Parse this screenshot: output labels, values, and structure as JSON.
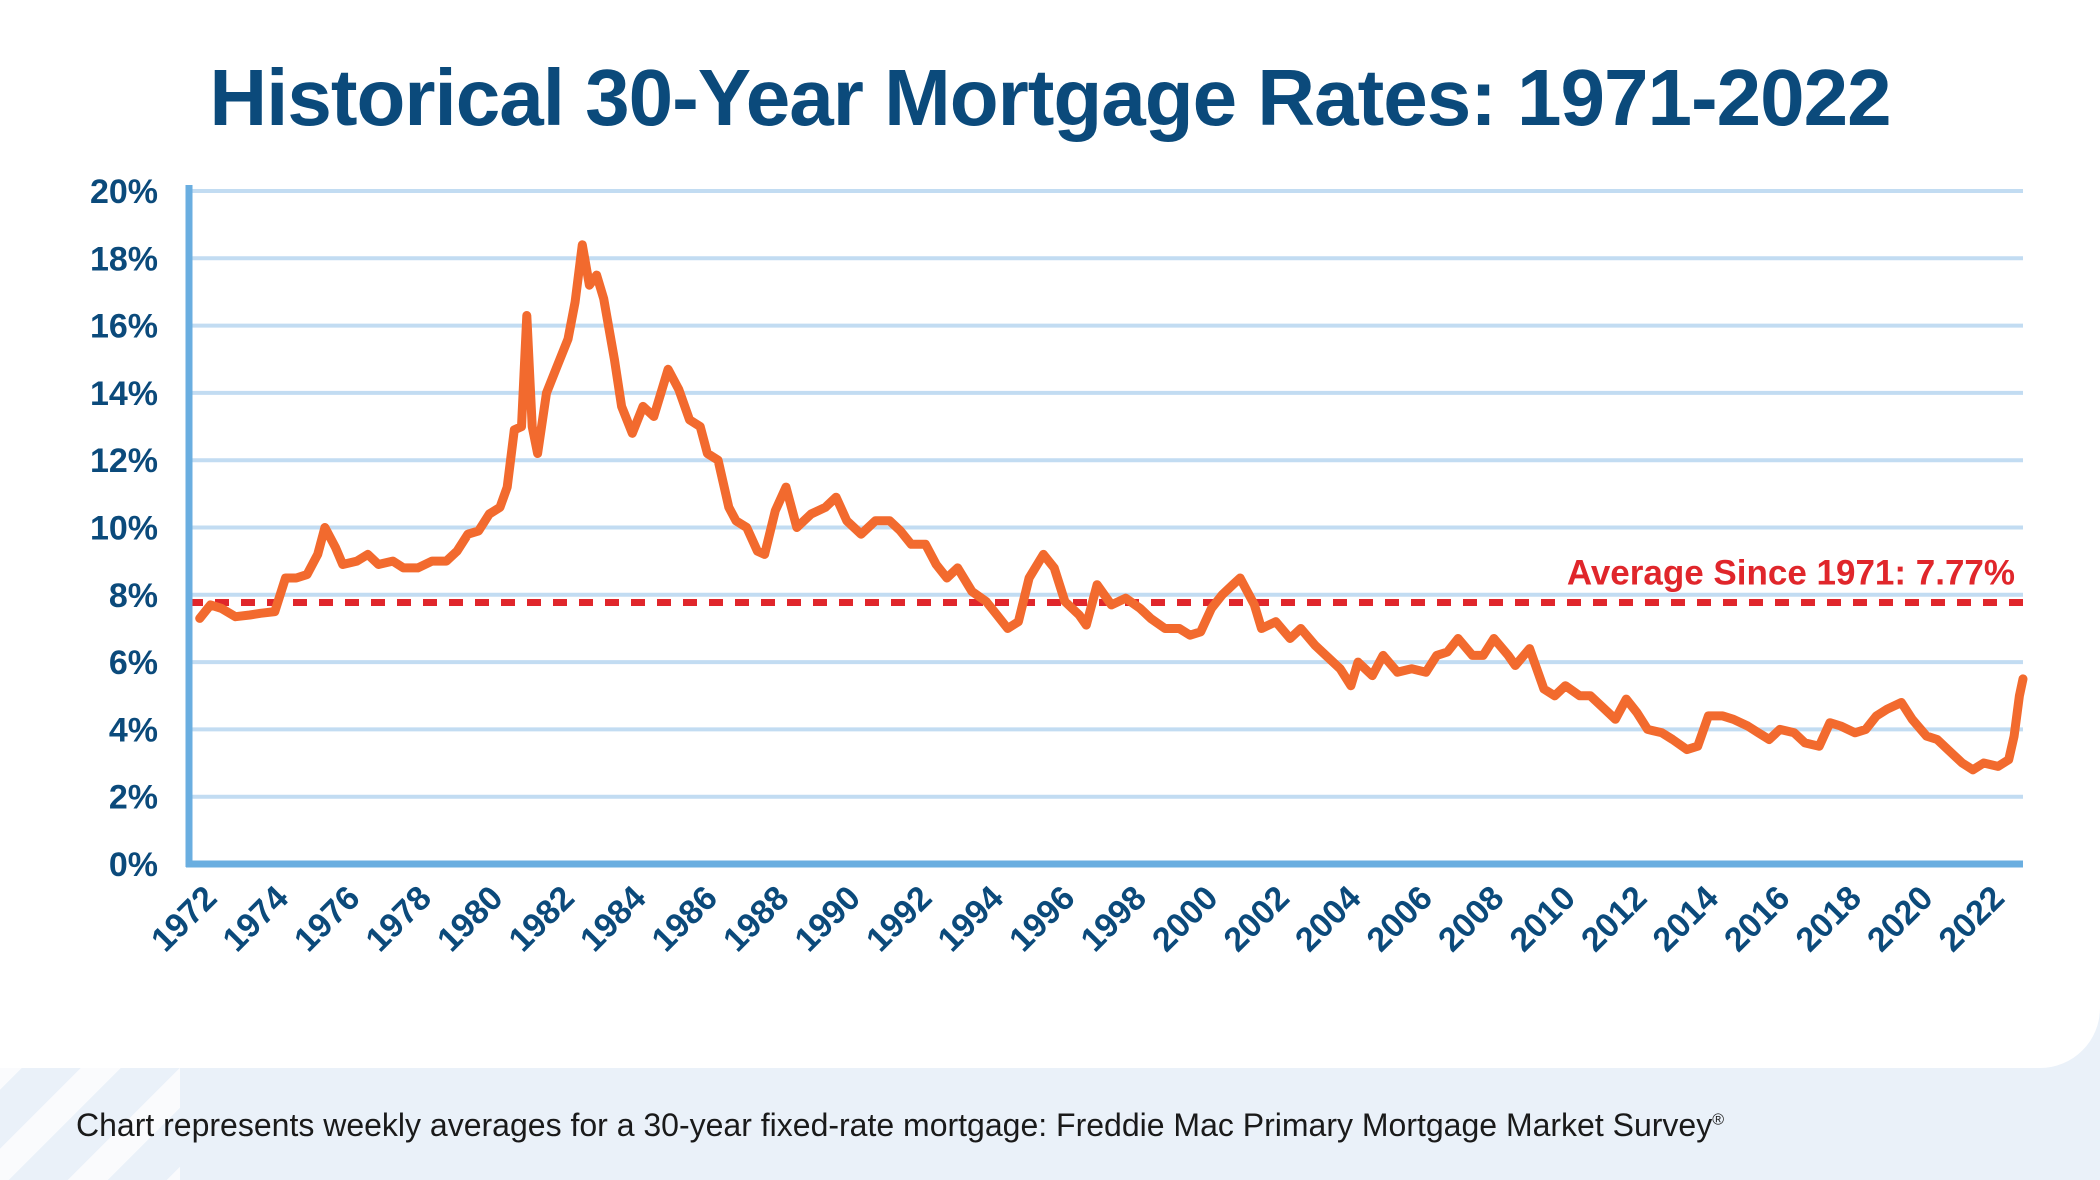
{
  "chart_data": {
    "type": "line",
    "title": "Historical 30-Year Mortgage Rates: 1971-2022",
    "xlabel": "",
    "ylabel": "",
    "ylim": [
      0,
      20
    ],
    "xlim": [
      1971,
      2022.3
    ],
    "grid": true,
    "y_ticks": [
      "0%",
      "2%",
      "4%",
      "6%",
      "8%",
      "10%",
      "12%",
      "14%",
      "16%",
      "18%",
      "20%"
    ],
    "x_ticks": [
      "1972",
      "1974",
      "1976",
      "1978",
      "1980",
      "1982",
      "1984",
      "1986",
      "1988",
      "1990",
      "1992",
      "1994",
      "1996",
      "1998",
      "2000",
      "2002",
      "2004",
      "2006",
      "2008",
      "2010",
      "2012",
      "2014",
      "2016",
      "2018",
      "2020",
      "2022"
    ],
    "colors": {
      "line": "#f26a2e",
      "average": "#e0262b",
      "grid": "#c2dcf2",
      "axis": "#6aaee0",
      "text": "#0b4a7b"
    },
    "average": {
      "value": 7.77,
      "label": "Average Since 1971: 7.77%"
    },
    "series": [
      {
        "points": [
          [
            1971.3,
            7.3
          ],
          [
            1971.6,
            7.7
          ],
          [
            1971.9,
            7.6
          ],
          [
            1972.3,
            7.35
          ],
          [
            1972.7,
            7.4
          ],
          [
            1973.0,
            7.45
          ],
          [
            1973.4,
            7.5
          ],
          [
            1973.7,
            8.5
          ],
          [
            1974.0,
            8.5
          ],
          [
            1974.3,
            8.6
          ],
          [
            1974.6,
            9.2
          ],
          [
            1974.8,
            10.0
          ],
          [
            1975.1,
            9.4
          ],
          [
            1975.3,
            8.9
          ],
          [
            1975.7,
            9.0
          ],
          [
            1976.0,
            9.2
          ],
          [
            1976.3,
            8.9
          ],
          [
            1976.7,
            9.0
          ],
          [
            1977.0,
            8.8
          ],
          [
            1977.4,
            8.8
          ],
          [
            1977.8,
            9.0
          ],
          [
            1978.2,
            9.0
          ],
          [
            1978.5,
            9.3
          ],
          [
            1978.8,
            9.8
          ],
          [
            1979.1,
            9.9
          ],
          [
            1979.4,
            10.4
          ],
          [
            1979.7,
            10.6
          ],
          [
            1979.9,
            11.2
          ],
          [
            1980.1,
            12.9
          ],
          [
            1980.3,
            13.0
          ],
          [
            1980.45,
            16.3
          ],
          [
            1980.6,
            13.0
          ],
          [
            1980.75,
            12.2
          ],
          [
            1981.0,
            14.0
          ],
          [
            1981.3,
            14.8
          ],
          [
            1981.6,
            15.6
          ],
          [
            1981.8,
            16.7
          ],
          [
            1982.0,
            18.4
          ],
          [
            1982.2,
            17.2
          ],
          [
            1982.4,
            17.5
          ],
          [
            1982.6,
            16.8
          ],
          [
            1982.9,
            15.0
          ],
          [
            1983.1,
            13.6
          ],
          [
            1983.4,
            12.8
          ],
          [
            1983.7,
            13.6
          ],
          [
            1984.0,
            13.3
          ],
          [
            1984.4,
            14.7
          ],
          [
            1984.7,
            14.1
          ],
          [
            1985.0,
            13.2
          ],
          [
            1985.3,
            13.0
          ],
          [
            1985.5,
            12.2
          ],
          [
            1985.8,
            12.0
          ],
          [
            1986.1,
            10.6
          ],
          [
            1986.3,
            10.2
          ],
          [
            1986.6,
            10.0
          ],
          [
            1986.9,
            9.3
          ],
          [
            1987.1,
            9.2
          ],
          [
            1987.4,
            10.5
          ],
          [
            1987.7,
            11.2
          ],
          [
            1988.0,
            10.0
          ],
          [
            1988.4,
            10.4
          ],
          [
            1988.8,
            10.6
          ],
          [
            1989.1,
            10.9
          ],
          [
            1989.4,
            10.2
          ],
          [
            1989.8,
            9.8
          ],
          [
            1990.2,
            10.2
          ],
          [
            1990.6,
            10.2
          ],
          [
            1990.9,
            9.9
          ],
          [
            1991.2,
            9.5
          ],
          [
            1991.6,
            9.5
          ],
          [
            1991.9,
            8.9
          ],
          [
            1992.2,
            8.5
          ],
          [
            1992.5,
            8.8
          ],
          [
            1992.9,
            8.1
          ],
          [
            1993.3,
            7.8
          ],
          [
            1993.6,
            7.4
          ],
          [
            1993.9,
            7.0
          ],
          [
            1994.2,
            7.2
          ],
          [
            1994.5,
            8.5
          ],
          [
            1994.9,
            9.2
          ],
          [
            1995.2,
            8.8
          ],
          [
            1995.5,
            7.8
          ],
          [
            1995.9,
            7.4
          ],
          [
            1996.1,
            7.1
          ],
          [
            1996.4,
            8.3
          ],
          [
            1996.8,
            7.7
          ],
          [
            1997.2,
            7.9
          ],
          [
            1997.6,
            7.6
          ],
          [
            1997.9,
            7.3
          ],
          [
            1998.3,
            7.0
          ],
          [
            1998.7,
            7.0
          ],
          [
            1999.0,
            6.8
          ],
          [
            1999.3,
            6.9
          ],
          [
            1999.6,
            7.6
          ],
          [
            1999.9,
            8.0
          ],
          [
            2000.2,
            8.3
          ],
          [
            2000.4,
            8.5
          ],
          [
            2000.8,
            7.7
          ],
          [
            2001.0,
            7.0
          ],
          [
            2001.4,
            7.2
          ],
          [
            2001.8,
            6.7
          ],
          [
            2002.1,
            7.0
          ],
          [
            2002.5,
            6.5
          ],
          [
            2002.9,
            6.1
          ],
          [
            2003.2,
            5.8
          ],
          [
            2003.5,
            5.3
          ],
          [
            2003.7,
            6.0
          ],
          [
            2004.1,
            5.6
          ],
          [
            2004.4,
            6.2
          ],
          [
            2004.8,
            5.7
          ],
          [
            2005.2,
            5.8
          ],
          [
            2005.6,
            5.7
          ],
          [
            2005.9,
            6.2
          ],
          [
            2006.2,
            6.3
          ],
          [
            2006.5,
            6.7
          ],
          [
            2006.9,
            6.2
          ],
          [
            2007.2,
            6.2
          ],
          [
            2007.5,
            6.7
          ],
          [
            2007.9,
            6.2
          ],
          [
            2008.1,
            5.9
          ],
          [
            2008.5,
            6.4
          ],
          [
            2008.9,
            5.2
          ],
          [
            2009.2,
            5.0
          ],
          [
            2009.5,
            5.3
          ],
          [
            2009.9,
            5.0
          ],
          [
            2010.2,
            5.0
          ],
          [
            2010.6,
            4.6
          ],
          [
            2010.9,
            4.3
          ],
          [
            2011.2,
            4.9
          ],
          [
            2011.5,
            4.5
          ],
          [
            2011.8,
            4.0
          ],
          [
            2012.2,
            3.9
          ],
          [
            2012.5,
            3.7
          ],
          [
            2012.9,
            3.4
          ],
          [
            2013.2,
            3.5
          ],
          [
            2013.5,
            4.4
          ],
          [
            2013.9,
            4.4
          ],
          [
            2014.2,
            4.3
          ],
          [
            2014.6,
            4.1
          ],
          [
            2014.9,
            3.9
          ],
          [
            2015.2,
            3.7
          ],
          [
            2015.5,
            4.0
          ],
          [
            2015.9,
            3.9
          ],
          [
            2016.2,
            3.6
          ],
          [
            2016.6,
            3.5
          ],
          [
            2016.9,
            4.2
          ],
          [
            2017.2,
            4.1
          ],
          [
            2017.6,
            3.9
          ],
          [
            2017.9,
            4.0
          ],
          [
            2018.2,
            4.4
          ],
          [
            2018.5,
            4.6
          ],
          [
            2018.9,
            4.8
          ],
          [
            2019.2,
            4.3
          ],
          [
            2019.6,
            3.8
          ],
          [
            2019.9,
            3.7
          ],
          [
            2020.2,
            3.4
          ],
          [
            2020.6,
            3.0
          ],
          [
            2020.9,
            2.8
          ],
          [
            2021.2,
            3.0
          ],
          [
            2021.6,
            2.9
          ],
          [
            2021.9,
            3.1
          ],
          [
            2022.05,
            3.8
          ],
          [
            2022.2,
            5.0
          ],
          [
            2022.3,
            5.5
          ]
        ]
      }
    ]
  },
  "footer": {
    "text": "Chart represents weekly averages for a 30-year fixed-rate mortgage: Freddie Mac Primary Mortgage Market Survey",
    "mark": "®"
  }
}
